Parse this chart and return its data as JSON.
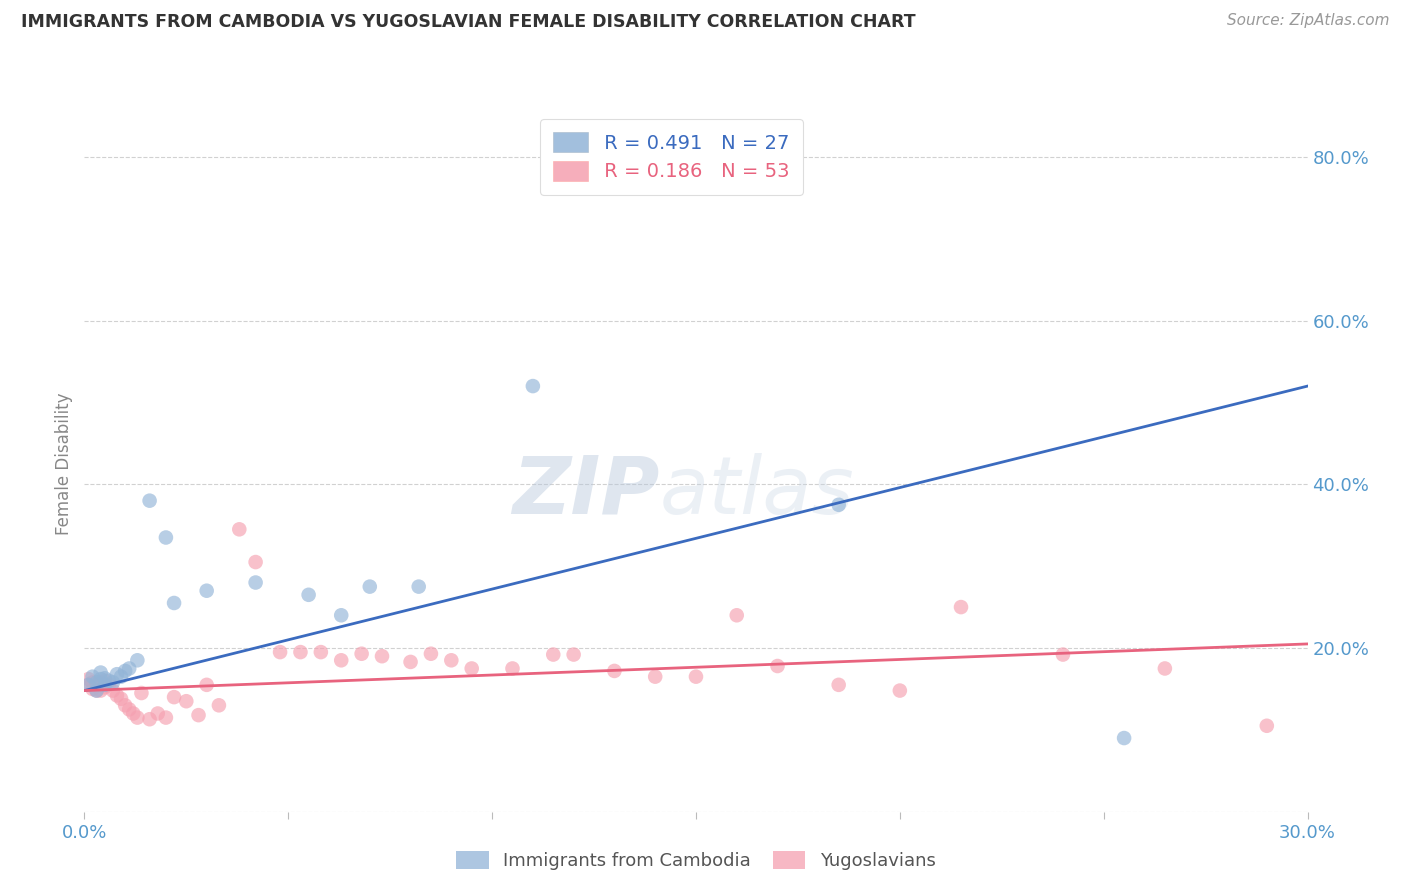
{
  "title": "IMMIGRANTS FROM CAMBODIA VS YUGOSLAVIAN FEMALE DISABILITY CORRELATION CHART",
  "source": "Source: ZipAtlas.com",
  "ylabel_label": "Female Disability",
  "x_min": 0.0,
  "x_max": 0.3,
  "y_min": 0.0,
  "y_max": 0.85,
  "x_ticks": [
    0.0,
    0.05,
    0.1,
    0.15,
    0.2,
    0.25,
    0.3
  ],
  "x_tick_labels": [
    "0.0%",
    "",
    "",
    "",
    "",
    "",
    "30.0%"
  ],
  "y_ticks": [
    0.0,
    0.2,
    0.4,
    0.6,
    0.8
  ],
  "y_tick_labels": [
    "",
    "20.0%",
    "40.0%",
    "60.0%",
    "80.0%"
  ],
  "legend_R_blue": "R = 0.491",
  "legend_N_blue": "N = 27",
  "legend_R_pink": "R = 0.186",
  "legend_N_pink": "N = 53",
  "legend_label_blue": "Immigrants from Cambodia",
  "legend_label_pink": "Yugoslavians",
  "blue_color": "#92b4d7",
  "pink_color": "#f5a0b0",
  "blue_line_color": "#3b6bbf",
  "pink_line_color": "#e8637e",
  "watermark_zip": "ZIP",
  "watermark_atlas": "atlas",
  "blue_x": [
    0.001,
    0.002,
    0.003,
    0.003,
    0.004,
    0.004,
    0.005,
    0.005,
    0.006,
    0.007,
    0.008,
    0.009,
    0.01,
    0.011,
    0.013,
    0.016,
    0.02,
    0.022,
    0.03,
    0.042,
    0.055,
    0.063,
    0.07,
    0.082,
    0.11,
    0.185,
    0.255
  ],
  "blue_y": [
    0.155,
    0.165,
    0.148,
    0.158,
    0.162,
    0.17,
    0.155,
    0.163,
    0.16,
    0.158,
    0.168,
    0.165,
    0.172,
    0.175,
    0.185,
    0.38,
    0.335,
    0.255,
    0.27,
    0.28,
    0.265,
    0.24,
    0.275,
    0.275,
    0.52,
    0.375,
    0.09
  ],
  "pink_x": [
    0.001,
    0.001,
    0.002,
    0.002,
    0.003,
    0.003,
    0.004,
    0.004,
    0.005,
    0.005,
    0.006,
    0.007,
    0.008,
    0.009,
    0.01,
    0.011,
    0.012,
    0.013,
    0.014,
    0.016,
    0.018,
    0.02,
    0.022,
    0.025,
    0.028,
    0.03,
    0.033,
    0.038,
    0.042,
    0.048,
    0.053,
    0.058,
    0.063,
    0.068,
    0.073,
    0.08,
    0.085,
    0.09,
    0.095,
    0.105,
    0.115,
    0.12,
    0.13,
    0.14,
    0.15,
    0.16,
    0.17,
    0.185,
    0.2,
    0.215,
    0.24,
    0.265,
    0.29
  ],
  "pink_y": [
    0.162,
    0.155,
    0.15,
    0.158,
    0.148,
    0.155,
    0.158,
    0.148,
    0.152,
    0.16,
    0.155,
    0.148,
    0.142,
    0.138,
    0.13,
    0.125,
    0.12,
    0.115,
    0.145,
    0.113,
    0.12,
    0.115,
    0.14,
    0.135,
    0.118,
    0.155,
    0.13,
    0.345,
    0.305,
    0.195,
    0.195,
    0.195,
    0.185,
    0.193,
    0.19,
    0.183,
    0.193,
    0.185,
    0.175,
    0.175,
    0.192,
    0.192,
    0.172,
    0.165,
    0.165,
    0.24,
    0.178,
    0.155,
    0.148,
    0.25,
    0.192,
    0.175,
    0.105
  ],
  "blue_trend_x": [
    0.0,
    0.3
  ],
  "blue_trend_y": [
    0.148,
    0.52
  ],
  "pink_trend_x": [
    0.0,
    0.3
  ],
  "pink_trend_y": [
    0.148,
    0.205
  ],
  "bg_color": "#FFFFFF",
  "grid_color": "#CCCCCC",
  "title_color": "#333333",
  "axis_label_color": "#888888",
  "tick_label_color": "#5599CC",
  "source_color": "#999999"
}
